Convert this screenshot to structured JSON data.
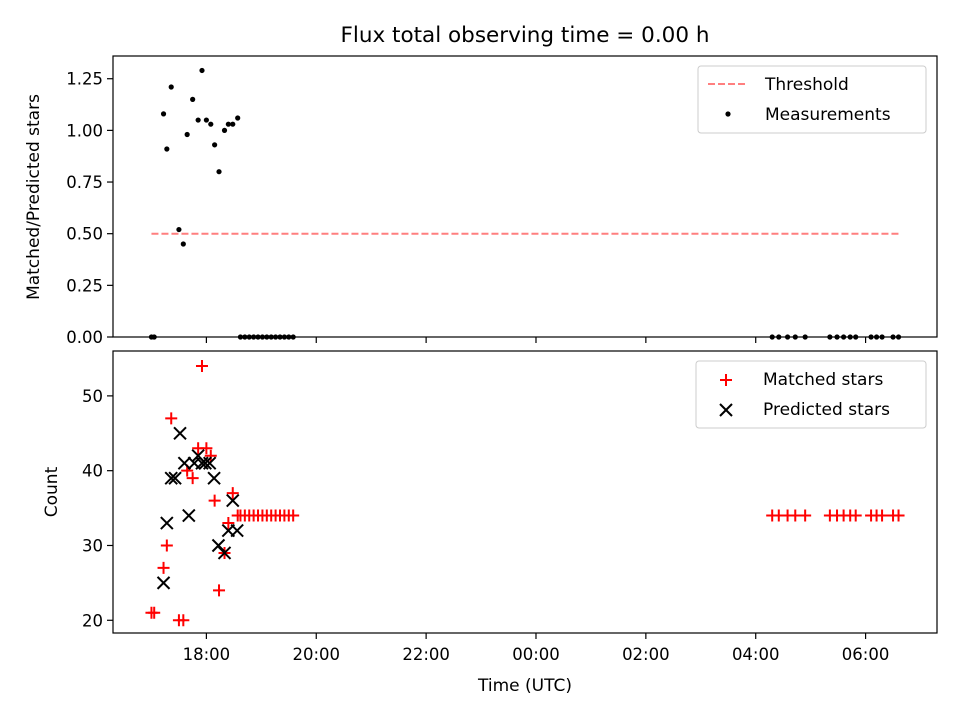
{
  "chart_data": [
    {
      "type": "scatter",
      "title": "Flux total observing time = 0.00 h",
      "xlabel": "",
      "ylabel": "Matched/Predicted stars",
      "xlim": [
        16.3,
        31.3
      ],
      "ylim": [
        0,
        1.36
      ],
      "yticks": [
        0,
        0.25,
        0.5,
        0.75,
        1.0,
        1.25
      ],
      "ytick_labels": [
        "0.00",
        "0.25",
        "0.50",
        "0.75",
        "1.00",
        "1.25"
      ],
      "legend_position": "top-right",
      "threshold": {
        "name": "Threshold",
        "value": 0.5,
        "x_range": [
          17.0,
          30.6
        ],
        "color": "#ff7f7f"
      },
      "measurements": {
        "name": "Measurements",
        "color": "#000000",
        "x": [
          17.0,
          17.05,
          17.22,
          17.28,
          17.36,
          17.5,
          17.58,
          17.65,
          17.75,
          17.85,
          17.92,
          18.0,
          18.08,
          18.15,
          18.23,
          18.33,
          18.4,
          18.48,
          18.57,
          18.62,
          18.7,
          18.78,
          18.86,
          18.94,
          19.02,
          19.1,
          19.18,
          19.26,
          19.34,
          19.42,
          19.5,
          19.58,
          28.3,
          28.42,
          28.58,
          28.72,
          28.9,
          29.35,
          29.48,
          29.6,
          29.72,
          29.82,
          30.1,
          30.2,
          30.3,
          30.5,
          30.6
        ],
        "y": [
          0.0,
          0.0,
          1.08,
          0.91,
          1.21,
          0.52,
          0.45,
          0.98,
          1.15,
          1.05,
          1.29,
          1.05,
          1.03,
          0.93,
          0.8,
          1.0,
          1.03,
          1.03,
          1.06,
          0.0,
          0.0,
          0.0,
          0.0,
          0.0,
          0.0,
          0.0,
          0.0,
          0.0,
          0.0,
          0.0,
          0.0,
          0.0,
          0.0,
          0.0,
          0.0,
          0.0,
          0.0,
          0.0,
          0.0,
          0.0,
          0.0,
          0.0,
          0.0,
          0.0,
          0.0,
          0.0,
          0.0
        ]
      }
    },
    {
      "type": "scatter",
      "title": "",
      "xlabel": "Time (UTC)",
      "ylabel": "Count",
      "xlim": [
        16.3,
        31.3
      ],
      "ylim": [
        18.3,
        56
      ],
      "yticks": [
        20,
        30,
        40,
        50
      ],
      "ytick_labels": [
        "20",
        "30",
        "40",
        "50"
      ],
      "xticks": [
        18,
        20,
        22,
        24,
        26,
        28,
        30
      ],
      "xtick_labels": [
        "18:00",
        "20:00",
        "22:00",
        "00:00",
        "02:00",
        "04:00",
        "06:00"
      ],
      "legend_position": "top-right",
      "series": [
        {
          "name": "Matched stars",
          "marker": "plus",
          "color": "#ff0000",
          "x": [
            17.0,
            17.05,
            17.22,
            17.28,
            17.36,
            17.5,
            17.58,
            17.65,
            17.75,
            17.85,
            17.92,
            18.0,
            18.08,
            18.15,
            18.23,
            18.33,
            18.4,
            18.48,
            18.57,
            18.62,
            18.7,
            18.78,
            18.86,
            18.94,
            19.02,
            19.1,
            19.18,
            19.26,
            19.34,
            19.42,
            19.5,
            19.58,
            28.3,
            28.42,
            28.58,
            28.72,
            28.9,
            29.35,
            29.48,
            29.6,
            29.72,
            29.82,
            30.1,
            30.2,
            30.3,
            30.5,
            30.6
          ],
          "y": [
            21,
            21,
            27,
            30,
            47,
            20,
            20,
            40,
            39,
            43,
            54,
            43,
            42,
            36,
            24,
            29,
            33,
            37,
            34,
            34,
            34,
            34,
            34,
            34,
            34,
            34,
            34,
            34,
            34,
            34,
            34,
            34,
            34,
            34,
            34,
            34,
            34,
            34,
            34,
            34,
            34,
            34,
            34,
            34,
            34,
            34,
            34
          ]
        },
        {
          "name": "Predicted stars",
          "marker": "x",
          "color": "#000000",
          "x": [
            17.22,
            17.28,
            17.36,
            17.43,
            17.52,
            17.6,
            17.68,
            17.78,
            17.85,
            17.92,
            17.98,
            18.06,
            18.14,
            18.22,
            18.33,
            18.4,
            18.48,
            18.56
          ],
          "y": [
            25,
            33,
            39,
            39,
            45,
            41,
            34,
            41,
            42,
            41,
            41,
            41,
            39,
            30,
            29,
            32,
            36,
            32
          ]
        }
      ]
    }
  ]
}
